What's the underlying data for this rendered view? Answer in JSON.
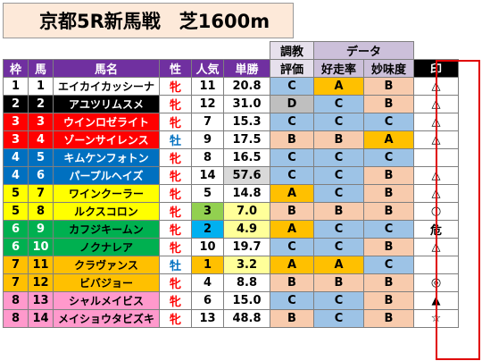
{
  "title": "京都5R新馬戦　芝1600m",
  "headers": {
    "waku": "枠",
    "uma": "馬",
    "name": "馬名",
    "sex": "性",
    "pop": "人気",
    "odds": "単勝",
    "train_top": "調教",
    "train_bottom": "評価",
    "data_group": "データ",
    "kosou": "好走率",
    "myomi": "妙味度",
    "mark": "印"
  },
  "colors": {
    "frame1": "#ffffff",
    "frame2": "#000000",
    "frame3": "#ff0000",
    "frame4": "#0070c0",
    "frame5": "#ffff00",
    "frame6": "#00b050",
    "frame7": "#ffc000",
    "frame8": "#ff99cc",
    "header": "#7030a0",
    "mark_outline": "#e00000"
  },
  "rows": [
    {
      "waku": "1",
      "uma": "1",
      "name": "エイカイカッシーナ",
      "sex": "牝",
      "pop": "11",
      "odds": "20.8",
      "train": "C",
      "kosou": "A",
      "myomi": "B",
      "mark": "△"
    },
    {
      "waku": "2",
      "uma": "2",
      "name": "アユツリムスメ",
      "sex": "牝",
      "pop": "12",
      "odds": "31.0",
      "train": "D",
      "kosou": "C",
      "myomi": "B",
      "mark": "△"
    },
    {
      "waku": "3",
      "uma": "3",
      "name": "ウインロゼライト",
      "sex": "牝",
      "pop": "7",
      "odds": "15.3",
      "train": "C",
      "kosou": "C",
      "myomi": "C",
      "mark": "△"
    },
    {
      "waku": "3",
      "uma": "4",
      "name": "ゾーンサイレンス",
      "sex": "牡",
      "pop": "9",
      "odds": "17.5",
      "train": "B",
      "kosou": "B",
      "myomi": "A",
      "mark": "△"
    },
    {
      "waku": "4",
      "uma": "5",
      "name": "キムケンフォトン",
      "sex": "牝",
      "pop": "8",
      "odds": "16.5",
      "train": "C",
      "kosou": "C",
      "myomi": "C",
      "mark": ""
    },
    {
      "waku": "4",
      "uma": "6",
      "name": "パープルヘイズ",
      "sex": "牝",
      "pop": "14",
      "odds": "57.6",
      "train": "C",
      "kosou": "C",
      "myomi": "B",
      "mark": "△"
    },
    {
      "waku": "5",
      "uma": "7",
      "name": "ワインクーラー",
      "sex": "牝",
      "pop": "5",
      "odds": "14.8",
      "train": "A",
      "kosou": "C",
      "myomi": "B",
      "mark": "△"
    },
    {
      "waku": "5",
      "uma": "8",
      "name": "ルクスコロン",
      "sex": "牝",
      "pop": "3",
      "odds": "7.0",
      "train": "B",
      "kosou": "B",
      "myomi": "B",
      "mark": "○"
    },
    {
      "waku": "6",
      "uma": "9",
      "name": "カフジキームン",
      "sex": "牝",
      "pop": "2",
      "odds": "4.9",
      "train": "A",
      "kosou": "C",
      "myomi": "C",
      "mark": "危"
    },
    {
      "waku": "6",
      "uma": "10",
      "name": "ノクナレア",
      "sex": "牝",
      "pop": "10",
      "odds": "19.7",
      "train": "C",
      "kosou": "C",
      "myomi": "B",
      "mark": "△"
    },
    {
      "waku": "7",
      "uma": "11",
      "name": "クラヴァンス",
      "sex": "牡",
      "pop": "1",
      "odds": "3.2",
      "train": "A",
      "kosou": "A",
      "myomi": "C",
      "mark": ""
    },
    {
      "waku": "7",
      "uma": "12",
      "name": "ビバジョー",
      "sex": "牝",
      "pop": "4",
      "odds": "8.8",
      "train": "B",
      "kosou": "B",
      "myomi": "B",
      "mark": "◎"
    },
    {
      "waku": "8",
      "uma": "13",
      "name": "シャルメイビス",
      "sex": "牝",
      "pop": "6",
      "odds": "15.0",
      "train": "C",
      "kosou": "C",
      "myomi": "B",
      "mark": "▲"
    },
    {
      "waku": "8",
      "uma": "14",
      "name": "メイショウタビズキ",
      "sex": "牝",
      "pop": "13",
      "odds": "48.8",
      "train": "B",
      "kosou": "C",
      "myomi": "B",
      "mark": "☆"
    }
  ]
}
